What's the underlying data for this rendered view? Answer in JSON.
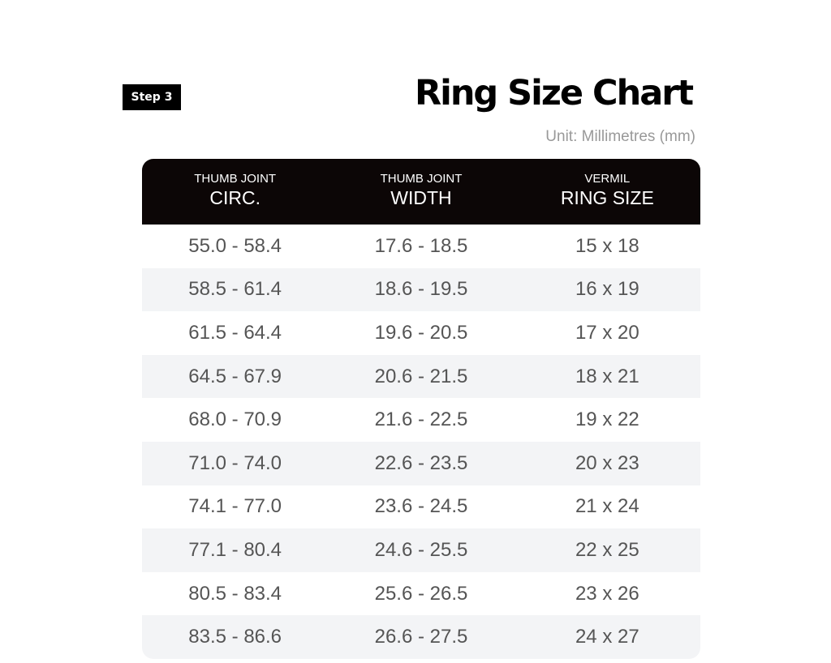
{
  "header": {
    "step": "Step 3",
    "title": "Ring Size Chart",
    "unit": "Unit: Millimetres (mm)"
  },
  "table": {
    "columns": [
      {
        "top": "THUMB JOINT",
        "bottom": "CIRC."
      },
      {
        "top": "THUMB JOINT",
        "bottom": "WIDTH"
      },
      {
        "top": "VERMIL",
        "bottom": "RING SIZE"
      }
    ],
    "rows": [
      [
        "55.0 - 58.4",
        "17.6 - 18.5",
        "15 x 18"
      ],
      [
        "58.5 - 61.4",
        "18.6 - 19.5",
        "16 x 19"
      ],
      [
        "61.5 - 64.4",
        "19.6 - 20.5",
        "17 x 20"
      ],
      [
        "64.5 - 67.9",
        "20.6 - 21.5",
        "18 x 21"
      ],
      [
        "68.0 - 70.9",
        "21.6 - 22.5",
        "19 x 22"
      ],
      [
        "71.0 - 74.0",
        "22.6 - 23.5",
        "20 x 23"
      ],
      [
        "74.1 - 77.0",
        "23.6 - 24.5",
        "21 x 24"
      ],
      [
        "77.1 - 80.4",
        "24.6 - 25.5",
        "22 x 25"
      ],
      [
        "80.5 - 83.4",
        "25.6 - 26.5",
        "23 x 26"
      ],
      [
        "83.5 - 86.6",
        "26.6 - 27.5",
        "24 x 27"
      ]
    ]
  }
}
